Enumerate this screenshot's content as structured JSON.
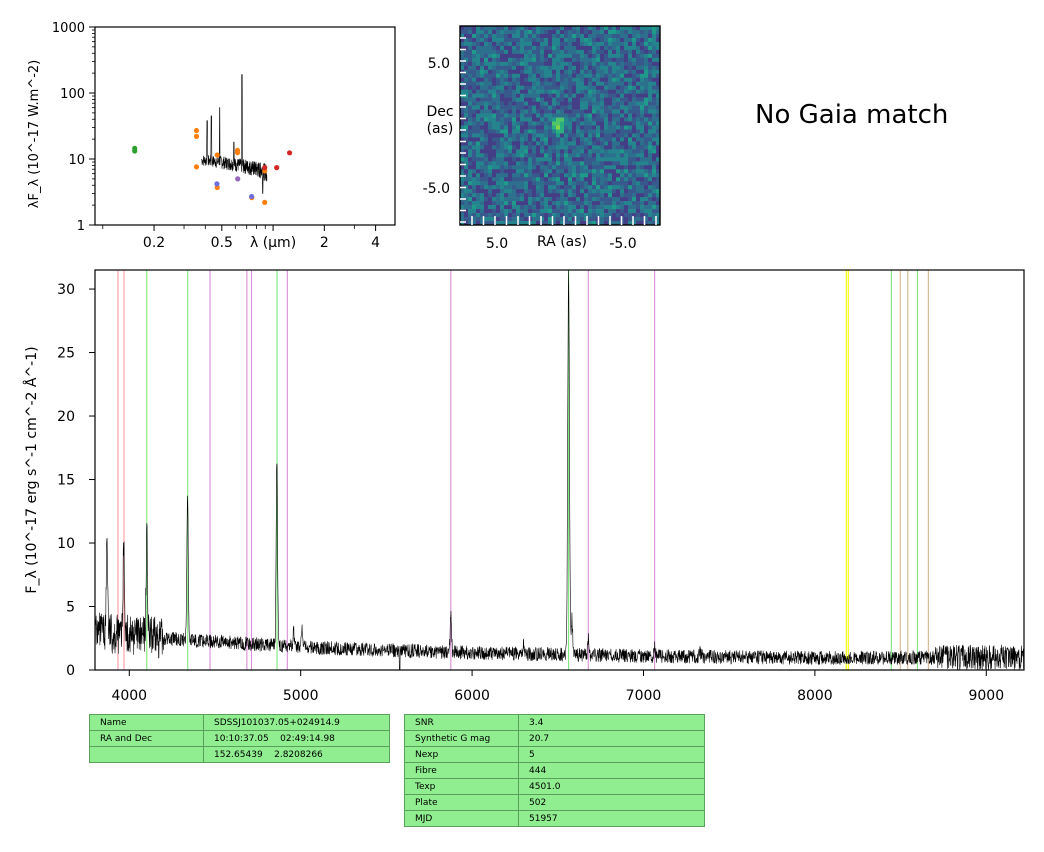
{
  "chart_data": [
    {
      "type": "scatter",
      "panel": "sed",
      "xscale": "log",
      "yscale": "log",
      "xlabel": "λ (μm)",
      "ylabel": "λF_λ (10^-17 W.m^-2)",
      "xlim": [
        0.09,
        5.2
      ],
      "ylim": [
        1,
        1000
      ],
      "xticks": [
        "0.2",
        "0.5",
        "λ (μm)",
        "2",
        "4"
      ],
      "xtick_values": [
        0.2,
        0.5,
        1,
        2,
        4
      ],
      "yticks": [
        1,
        10,
        100,
        1000
      ],
      "series": [
        {
          "color": "#2ca02c",
          "points": [
            [
              0.154,
              13.2
            ],
            [
              0.154,
              14.5
            ]
          ]
        },
        {
          "color": "#ff7f0e",
          "points": [
            [
              0.355,
              27
            ],
            [
              0.355,
              22
            ],
            [
              0.355,
              7.6
            ],
            [
              0.47,
              11.5
            ],
            [
              0.47,
              3.7
            ],
            [
              0.618,
              13.5
            ],
            [
              0.618,
              12.5
            ],
            [
              0.75,
              2.6
            ],
            [
              0.893,
              2.2
            ],
            [
              0.893,
              6.6
            ]
          ]
        },
        {
          "color": "#6f6fdc",
          "points": [
            [
              0.468,
              4.2
            ],
            [
              0.748,
              2.7
            ]
          ]
        },
        {
          "color": "#d62728",
          "points": [
            [
              0.893,
              7.4
            ],
            [
              1.05,
              7.4
            ],
            [
              1.25,
              12.4
            ]
          ]
        },
        {
          "color": "#9467bd",
          "points": [
            [
              0.62,
              5.0
            ]
          ]
        }
      ]
    },
    {
      "type": "heatmap",
      "panel": "image",
      "xlabel": "RA (as)",
      "ylabel": "Dec\n(as)",
      "xticks": [
        "5.0",
        "-5.0"
      ],
      "yticks": [
        "5.0",
        "-5.0"
      ],
      "colormap": "viridis",
      "source": "faint compact source near centre"
    },
    {
      "type": "line",
      "panel": "spectrum",
      "xlabel": "",
      "ylabel": "F_λ (10^-17 erg s^-1 cm^-2 Å^-1)",
      "xlim": [
        3800,
        9220
      ],
      "ylim": [
        0,
        31.5
      ],
      "xticks": [
        4000,
        5000,
        6000,
        7000,
        8000,
        9000
      ],
      "yticks": [
        0,
        5,
        10,
        15,
        20,
        25,
        30
      ],
      "continuum": [
        [
          3800,
          3.0
        ],
        [
          4200,
          2.5
        ],
        [
          5000,
          1.8
        ],
        [
          6000,
          1.35
        ],
        [
          7000,
          1.1
        ],
        [
          8000,
          0.95
        ],
        [
          9220,
          1.0
        ]
      ],
      "emission_lines": [
        {
          "x": 3727,
          "peak": 11.3
        },
        {
          "x": 3870,
          "peak": 10.5
        },
        {
          "x": 3968,
          "peak": 10.2
        },
        {
          "x": 4102,
          "peak": 10.9
        },
        {
          "x": 4340,
          "peak": 13.8
        },
        {
          "x": 4861,
          "peak": 16.5
        },
        {
          "x": 4959,
          "peak": 3.0
        },
        {
          "x": 5007,
          "peak": 3.2
        },
        {
          "x": 5876,
          "peak": 4.2
        },
        {
          "x": 6300,
          "peak": 2.0
        },
        {
          "x": 6563,
          "peak": 31.0
        },
        {
          "x": 6583,
          "peak": 4.0
        },
        {
          "x": 6678,
          "peak": 2.4
        },
        {
          "x": 7065,
          "peak": 1.8
        },
        {
          "x": 7330,
          "peak": 1.4
        }
      ],
      "vlines": [
        {
          "x": 3934,
          "color": "#ff9aa2"
        },
        {
          "x": 3969,
          "color": "#ff9aa2"
        },
        {
          "x": 4102,
          "color": "#7ce77c"
        },
        {
          "x": 4341,
          "color": "#7ce77c"
        },
        {
          "x": 4471,
          "color": "#d98fd9"
        },
        {
          "x": 4686,
          "color": "#d98fd9"
        },
        {
          "x": 4713,
          "color": "#d98fd9"
        },
        {
          "x": 4862,
          "color": "#7ce77c"
        },
        {
          "x": 4922,
          "color": "#d98fd9"
        },
        {
          "x": 5876,
          "color": "#d98fd9"
        },
        {
          "x": 6563,
          "color": "#7ce77c"
        },
        {
          "x": 6678,
          "color": "#d98fd9"
        },
        {
          "x": 7065,
          "color": "#d98fd9"
        },
        {
          "x": 8183,
          "color": "#ffff00"
        },
        {
          "x": 8195,
          "color": "#ffff00"
        },
        {
          "x": 8446,
          "color": "#7ce77c"
        },
        {
          "x": 8498,
          "color": "#d2b48c"
        },
        {
          "x": 8542,
          "color": "#d2b48c"
        },
        {
          "x": 8598,
          "color": "#7ce77c"
        },
        {
          "x": 8662,
          "color": "#d2b48c"
        }
      ]
    }
  ],
  "gaia": {
    "text": "No Gaia match"
  },
  "info_table": {
    "rows": [
      {
        "label": "Name",
        "value": "SDSSJ101037.05+024914.9"
      },
      {
        "label": "RA and Dec",
        "value": "10:10:37.05    02:49:14.98"
      },
      {
        "label": "",
        "value": "152.65439    2.8208266"
      }
    ]
  },
  "stats_table": {
    "rows": [
      {
        "label": "SNR",
        "value": "3.4"
      },
      {
        "label": "Synthetic G mag",
        "value": "20.7"
      },
      {
        "label": "Nexp",
        "value": "5"
      },
      {
        "label": "Fibre",
        "value": "444"
      },
      {
        "label": "Texp",
        "value": "4501.0"
      },
      {
        "label": "Plate",
        "value": "502"
      },
      {
        "label": "MJD",
        "value": "51957"
      }
    ]
  }
}
